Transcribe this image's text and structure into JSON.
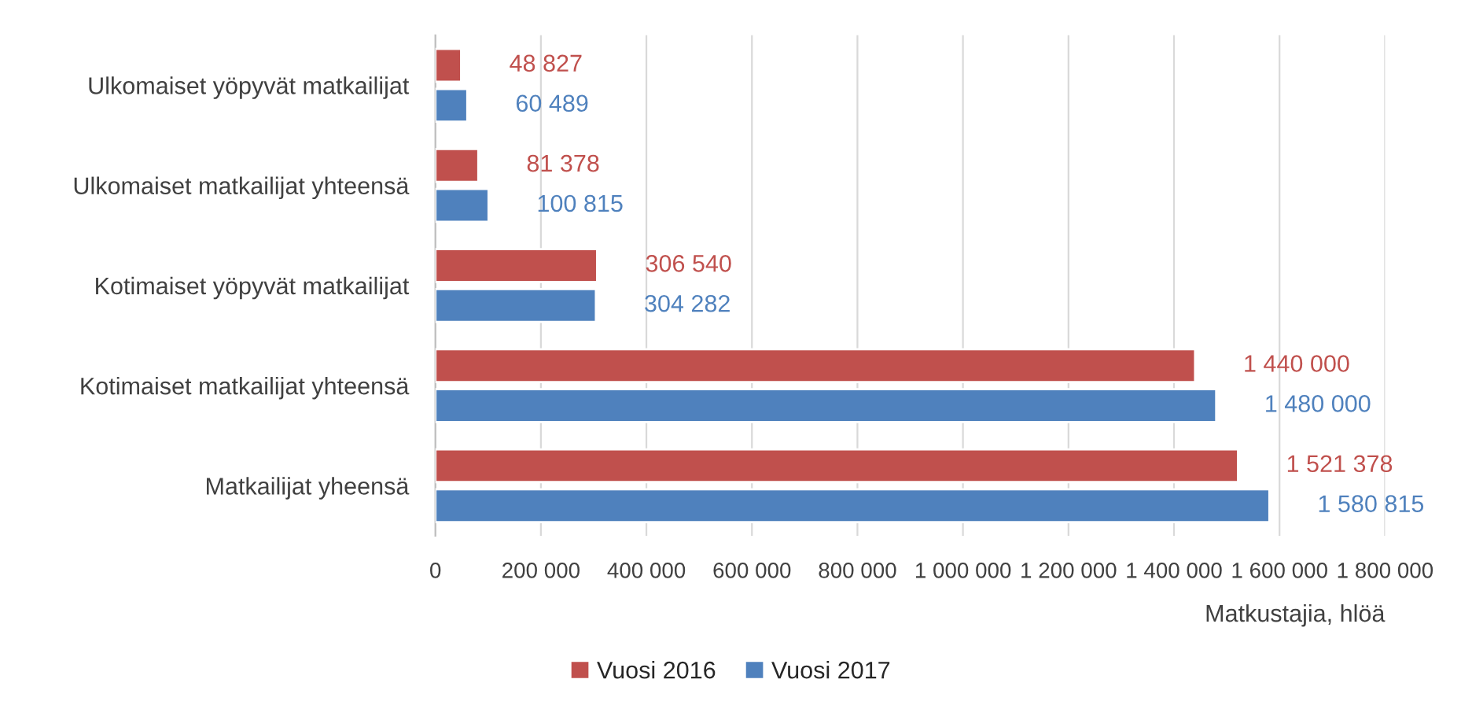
{
  "chart_data": {
    "type": "bar",
    "orientation": "horizontal",
    "xlabel": "Matkustajia, hlöä",
    "categories": [
      "Ulkomaiset yöpyvät matkailijat",
      "Ulkomaiset matkailijat yhteensä",
      "Kotimaiset yöpyvät matkailijat",
      "Kotimaiset matkailijat yhteensä",
      "Matkailijat yheensä"
    ],
    "series": [
      {
        "name": "Vuosi 2016",
        "color": "#c0504d",
        "values": [
          48827,
          81378,
          306540,
          1440000,
          1521378
        ],
        "value_labels": [
          "48 827",
          "81 378",
          "306 540",
          "1 440 000",
          "1 521 378"
        ]
      },
      {
        "name": "Vuosi 2017",
        "color": "#4f81bd",
        "values": [
          60489,
          100815,
          304282,
          1480000,
          1580815
        ],
        "value_labels": [
          "60 489",
          "100 815",
          "304 282",
          "1 480 000",
          "1 580 815"
        ]
      }
    ],
    "xlim": [
      0,
      1800000
    ],
    "xticks": [
      {
        "value": 0,
        "label": "0"
      },
      {
        "value": 200000,
        "label": "200 000"
      },
      {
        "value": 400000,
        "label": "400 000"
      },
      {
        "value": 600000,
        "label": "600 000"
      },
      {
        "value": 800000,
        "label": "800 000"
      },
      {
        "value": 1000000,
        "label": "1 000 000"
      },
      {
        "value": 1200000,
        "label": "1 200 000"
      },
      {
        "value": 1400000,
        "label": "1 400 000"
      },
      {
        "value": 1600000,
        "label": "1 600 000"
      },
      {
        "value": 1800000,
        "label": "1 800 000"
      }
    ],
    "grid": "x",
    "legend": "bottom"
  }
}
